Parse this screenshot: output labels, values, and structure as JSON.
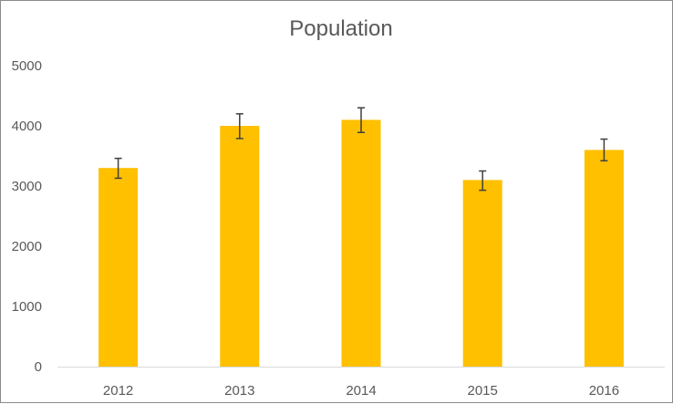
{
  "chart_data": {
    "type": "bar",
    "title": "Population",
    "xlabel": "",
    "ylabel": "",
    "categories": [
      "2012",
      "2013",
      "2014",
      "2015",
      "2016"
    ],
    "values": [
      3300,
      4000,
      4100,
      3100,
      3600
    ],
    "error_bars": [
      {
        "low": 3130,
        "high": 3460
      },
      {
        "low": 3790,
        "high": 4200
      },
      {
        "low": 3890,
        "high": 4300
      },
      {
        "low": 2930,
        "high": 3250
      },
      {
        "low": 3420,
        "high": 3780
      }
    ],
    "ylim": [
      0,
      5000
    ],
    "yticks": [
      0,
      1000,
      2000,
      3000,
      4000,
      5000
    ],
    "grid": false,
    "legend": "none",
    "colors": {
      "bar": "#FFC000",
      "error_bar": "#404040",
      "axis": "#d9d9d9"
    }
  }
}
